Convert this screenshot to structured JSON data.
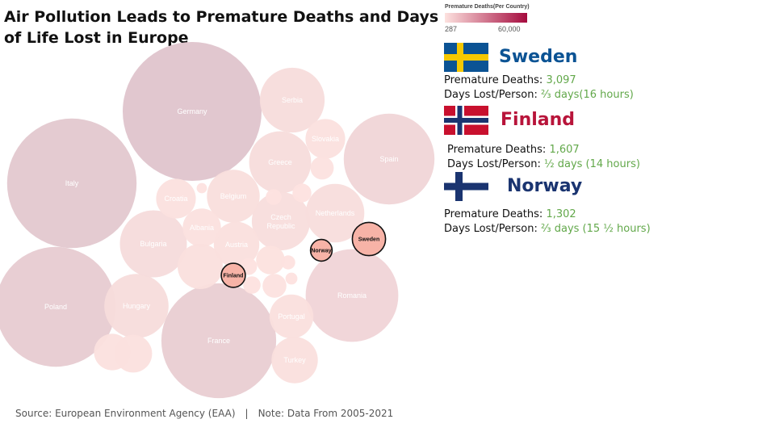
{
  "title": "Air Pollution Leads to Premature Deaths and Days of Life Lost in Europe",
  "legend": {
    "title": "Premature Deaths(Per Country)",
    "min_label": "287",
    "max_label": "60,000",
    "color_low": "#fde2df",
    "color_high": "#a50b3e"
  },
  "labels": {
    "deaths_label": "Premature Deaths:",
    "days_label": "Days Lost/Person:"
  },
  "highlights": [
    {
      "name": "Sweden",
      "name_color": "#0b5394",
      "flag": "sweden-flag",
      "deaths": "3,097",
      "days": "⅔ days(16 hours)"
    },
    {
      "name": "Finland",
      "name_color": "#b8143a",
      "flag": "norway-flag",
      "deaths": "1,607",
      "days": "½ days (14 hours)"
    },
    {
      "name": "Norway",
      "name_color": "#1a3470",
      "flag": "finland-flag",
      "deaths": "1,302",
      "days": "⅔ days (15 ½ hours)"
    }
  ],
  "chart_data": {
    "type": "bubble",
    "size_encodes": "Premature Deaths",
    "color_scale": {
      "min": 287,
      "max": 60000
    },
    "bubbles": [
      {
        "label": "Germany",
        "value": 53800,
        "highlighted": false
      },
      {
        "label": "Italy",
        "value": 46800,
        "highlighted": false
      },
      {
        "label": "Poland",
        "value": 40000,
        "highlighted": false
      },
      {
        "label": "France",
        "value": 36800,
        "highlighted": false
      },
      {
        "label": "Romania",
        "value": 24000,
        "highlighted": false
      },
      {
        "label": "Spain",
        "value": 23000,
        "highlighted": false
      },
      {
        "label": "Hungary",
        "value": 11500,
        "highlighted": false
      },
      {
        "label": "Bulgaria",
        "value": 12500,
        "highlighted": false
      },
      {
        "label": "Serbia",
        "value": 11700,
        "highlighted": false
      },
      {
        "label": "Greece",
        "value": 10700,
        "highlighted": false
      },
      {
        "label": "Czech Republic",
        "value": 9500,
        "highlighted": false
      },
      {
        "label": "Netherlands",
        "value": 9600,
        "highlighted": false
      },
      {
        "label": "Belgium",
        "value": 7800,
        "highlighted": false
      },
      {
        "label": "Portugal",
        "value": 5400,
        "highlighted": false
      },
      {
        "label": "Turkey",
        "value": 6000,
        "highlighted": false
      },
      {
        "label": "Austria",
        "value": 5800,
        "highlighted": false
      },
      {
        "label": "Slovakia",
        "value": 4400,
        "highlighted": false
      },
      {
        "label": "Croatia",
        "value": 4400,
        "highlighted": false
      },
      {
        "label": "Albania",
        "value": 4100,
        "highlighted": false
      },
      {
        "label": "Sweden",
        "value": 3097,
        "highlighted": true
      },
      {
        "label": "Finland",
        "value": 1607,
        "highlighted": true
      },
      {
        "label": "Norway",
        "value": 1302,
        "highlighted": true
      },
      {
        "label": "",
        "value": 5700,
        "highlighted": false
      },
      {
        "label": "",
        "value": 4000,
        "highlighted": false
      },
      {
        "label": "",
        "value": 3700,
        "highlighted": false
      },
      {
        "label": "",
        "value": 2300,
        "highlighted": false
      },
      {
        "label": "",
        "value": 1600,
        "highlighted": false
      },
      {
        "label": "",
        "value": 1500,
        "highlighted": false
      },
      {
        "label": "",
        "value": 1000,
        "highlighted": false
      },
      {
        "label": "",
        "value": 850,
        "highlighted": false
      },
      {
        "label": "",
        "value": 800,
        "highlighted": false
      },
      {
        "label": "",
        "value": 700,
        "highlighted": false
      },
      {
        "label": "",
        "value": 550,
        "highlighted": false
      },
      {
        "label": "",
        "value": 400,
        "highlighted": false
      },
      {
        "label": "",
        "value": 300,
        "highlighted": false
      }
    ]
  },
  "footer": {
    "source": "Source: European Environment Agency (EAA)",
    "separator": "|",
    "note": "Note: Data From 2005-2021"
  }
}
